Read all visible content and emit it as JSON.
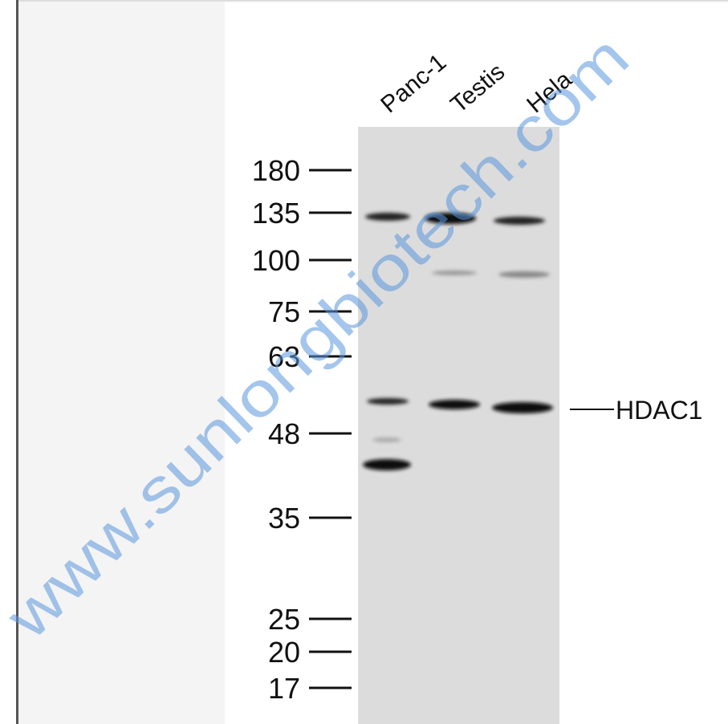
{
  "lanes": [
    "Panc-1",
    "Testis",
    "Hela"
  ],
  "markers": [
    "180",
    "135",
    "100",
    "75",
    "63",
    "48",
    "35",
    "25",
    "20",
    "17"
  ],
  "band_label": "HDAC1",
  "watermark": "www.sunlongbiotech.com"
}
